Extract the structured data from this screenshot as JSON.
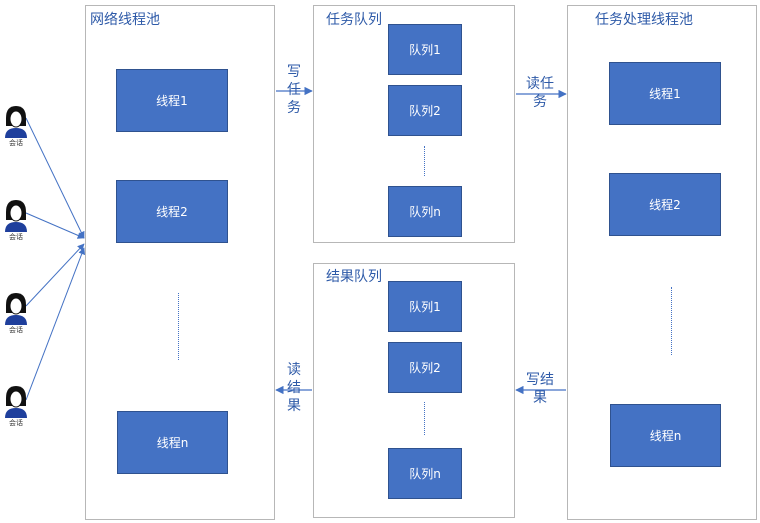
{
  "network_pool": {
    "title": "网络线程池",
    "threads": [
      "线程1",
      "线程2",
      "线程n"
    ]
  },
  "task_queue": {
    "title": "任务队列",
    "items": [
      "队列1",
      "队列2",
      "队列n"
    ]
  },
  "result_queue": {
    "title": "结果队列",
    "items": [
      "队列1",
      "队列2",
      "队列n"
    ]
  },
  "task_pool": {
    "title": "任务处理线程池",
    "threads": [
      "线程1",
      "线程2",
      "线程n"
    ]
  },
  "arrows": {
    "write_task": "写任\n务",
    "read_task": "读任\n务",
    "write_result": "写结\n果",
    "read_result": "读\n结\n果"
  },
  "sessions": [
    "会话",
    "会话",
    "会话",
    "会话"
  ],
  "colors": {
    "block": "#4472c4",
    "text": "#2e5aa8",
    "border": "#b7b7b7"
  }
}
